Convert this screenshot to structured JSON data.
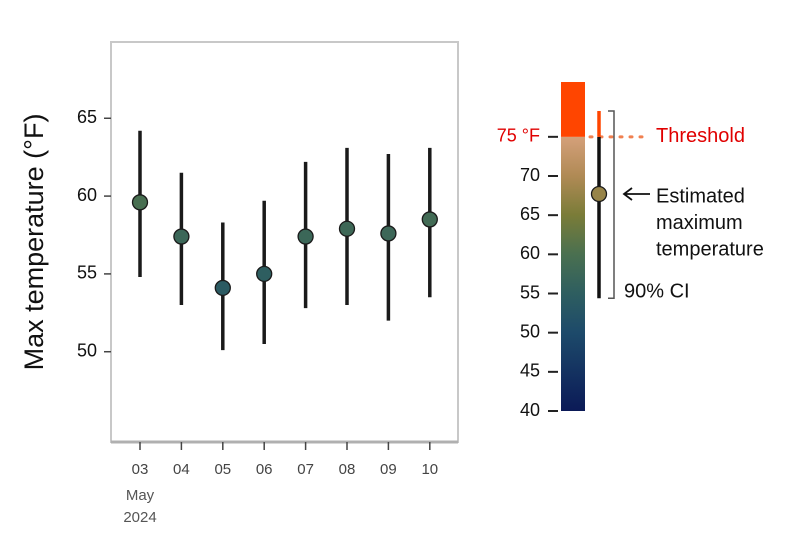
{
  "chart_data": {
    "type": "errorpoint",
    "y_label": "Max temperature (°F)",
    "categories": [
      "03",
      "04",
      "05",
      "06",
      "07",
      "08",
      "09",
      "10"
    ],
    "month_label": "May",
    "year_label": "2024",
    "values": [
      59.6,
      57.4,
      54.1,
      55.0,
      57.4,
      57.9,
      57.6,
      58.5
    ],
    "ci_low": [
      54.8,
      53.0,
      50.1,
      50.5,
      52.8,
      53.0,
      52.0,
      53.5
    ],
    "ci_high": [
      64.2,
      61.5,
      58.3,
      59.7,
      62.2,
      63.1,
      62.7,
      63.1
    ],
    "ylim": [
      44.2,
      69.9
    ],
    "yticks": [
      50,
      55,
      60,
      65
    ],
    "colorscale": [
      [
        40,
        "#0b1a57"
      ],
      [
        50,
        "#1d4a6a"
      ],
      [
        55,
        "#2e5e60"
      ],
      [
        60,
        "#4a7050"
      ],
      [
        65,
        "#7a7c38"
      ],
      [
        70,
        "#b08a55"
      ],
      [
        75,
        "#d4a07a"
      ]
    ],
    "threshold_color": "#ff4500",
    "colorbar": {
      "lim": [
        40,
        82
      ],
      "ticks": [
        40,
        45,
        50,
        55,
        60,
        65,
        70,
        {
          "value": 75,
          "label": "75 °F"
        }
      ],
      "threshold": 75,
      "threshold_label": "Threshold",
      "example_estimate": 67.7,
      "example_ci": [
        54.4,
        78.3
      ],
      "estimate_label": [
        "Estimated",
        "maximum",
        "temperature"
      ],
      "ci_label": "90% CI"
    }
  }
}
